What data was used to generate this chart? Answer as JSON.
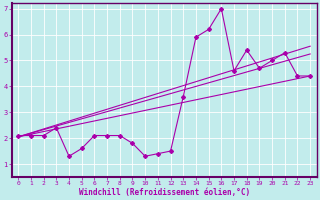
{
  "xlabel": "Windchill (Refroidissement éolien,°C)",
  "bg_color": "#c2ecec",
  "line_color": "#aa00aa",
  "spine_color": "#660066",
  "xlim": [
    -0.5,
    23.5
  ],
  "ylim": [
    0.5,
    7.2
  ],
  "xticks": [
    0,
    1,
    2,
    3,
    4,
    5,
    6,
    7,
    8,
    9,
    10,
    11,
    12,
    13,
    14,
    15,
    16,
    17,
    18,
    19,
    20,
    21,
    22,
    23
  ],
  "yticks": [
    1,
    2,
    3,
    4,
    5,
    6,
    7
  ],
  "series1_x": [
    0,
    1,
    2,
    3,
    4,
    5,
    6,
    7,
    8,
    9,
    10,
    11,
    12,
    13,
    14,
    15,
    16,
    17,
    18,
    19,
    20,
    21,
    22,
    23
  ],
  "series1_y": [
    2.1,
    2.1,
    2.1,
    2.4,
    1.3,
    1.6,
    2.1,
    2.1,
    2.1,
    1.8,
    1.3,
    1.4,
    1.5,
    3.6,
    5.9,
    6.2,
    7.0,
    4.6,
    5.4,
    4.7,
    5.0,
    5.3,
    4.4,
    4.4
  ],
  "trend1_x": [
    0,
    23
  ],
  "trend1_y": [
    2.05,
    4.4
  ],
  "trend2_x": [
    0,
    23
  ],
  "trend2_y": [
    2.05,
    5.25
  ],
  "trend3_x": [
    0,
    23
  ],
  "trend3_y": [
    2.05,
    5.55
  ]
}
